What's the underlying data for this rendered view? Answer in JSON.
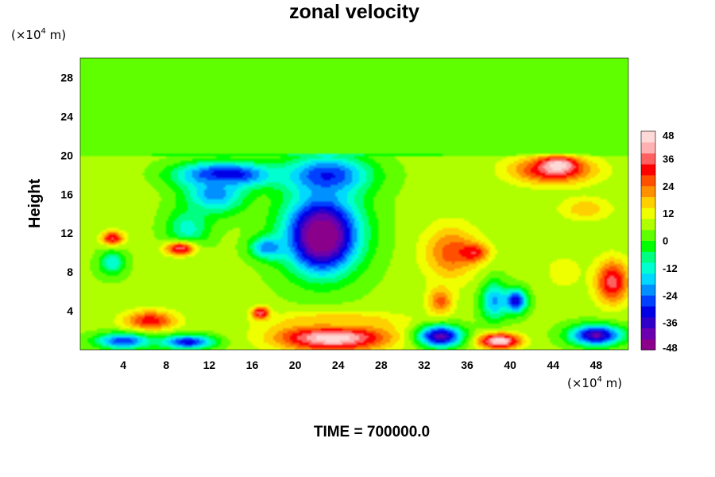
{
  "chart_data": {
    "type": "heatmap",
    "title": "zonal velocity",
    "ylabel": "Height",
    "xlabel": "",
    "y_unit": {
      "prefix": "(×10",
      "exponent": "4",
      "suffix": " m)"
    },
    "x_unit": {
      "prefix": "(×10",
      "exponent": "4",
      "suffix": " m)"
    },
    "xlim": [
      0,
      51
    ],
    "ylim": [
      0,
      30
    ],
    "x_ticks": [
      "4",
      "8",
      "12",
      "16",
      "20",
      "24",
      "28",
      "32",
      "36",
      "40",
      "44",
      "48"
    ],
    "y_ticks": [
      "4",
      "8",
      "12",
      "16",
      "20",
      "24",
      "28"
    ],
    "colorbar": {
      "range": [
        -48,
        48
      ],
      "ticks": [
        "48",
        "36",
        "24",
        "12",
        "0",
        "-12",
        "-24",
        "-36",
        "-48"
      ],
      "colors": [
        "#8a008a",
        "#6a00b0",
        "#3000c8",
        "#0000e6",
        "#0040ff",
        "#0090ff",
        "#00d8ff",
        "#00ffd0",
        "#00ff80",
        "#00ff00",
        "#60ff00",
        "#b0ff00",
        "#f0ff00",
        "#ffd000",
        "#ff9000",
        "#ff5000",
        "#ff0000",
        "#ff6060",
        "#ffb0b0",
        "#ffd8d8"
      ]
    },
    "field": {
      "background": 0,
      "features": [
        {
          "kind": "layer",
          "y": [
            0,
            20
          ],
          "value": 6
        },
        {
          "kind": "blob",
          "x": 4,
          "y": 17,
          "rx": 3,
          "ry": 2.5,
          "value": 8
        },
        {
          "kind": "blob",
          "x": 2.5,
          "y": 8.5,
          "rx": 2,
          "ry": 2,
          "value": 4
        },
        {
          "kind": "blob",
          "x": 13.5,
          "y": 18,
          "rx": 5.5,
          "ry": 1.6,
          "value": -36
        },
        {
          "kind": "blob",
          "x": 12.5,
          "y": 16,
          "rx": 3.5,
          "ry": 2.5,
          "value": -22
        },
        {
          "kind": "blob",
          "x": 23,
          "y": 18,
          "rx": 5,
          "ry": 2.5,
          "value": -28
        },
        {
          "kind": "blob",
          "x": 22.5,
          "y": 12,
          "rx": 4.6,
          "ry": 5.2,
          "value": -42
        },
        {
          "kind": "blob",
          "x": 22.5,
          "y": 11.5,
          "rx": 2.6,
          "ry": 3.2,
          "value": -48
        },
        {
          "kind": "blob",
          "x": 17.5,
          "y": 10.5,
          "rx": 2,
          "ry": 1.4,
          "value": -24
        },
        {
          "kind": "blob",
          "x": 10,
          "y": 12.5,
          "rx": 2.5,
          "ry": 2.4,
          "value": -12
        },
        {
          "kind": "blob",
          "x": 3,
          "y": 9,
          "rx": 1.4,
          "ry": 1.5,
          "value": -14
        },
        {
          "kind": "blob",
          "x": 3,
          "y": 11.5,
          "rx": 1.3,
          "ry": 0.9,
          "value": 34
        },
        {
          "kind": "blob",
          "x": 9.3,
          "y": 10.4,
          "rx": 1.8,
          "ry": 0.9,
          "value": 36
        },
        {
          "kind": "blob",
          "x": 6.5,
          "y": 3,
          "rx": 3,
          "ry": 1.3,
          "value": 32
        },
        {
          "kind": "blob",
          "x": 23.5,
          "y": 1.3,
          "rx": 6.5,
          "ry": 1.8,
          "value": 48
        },
        {
          "kind": "blob",
          "x": 24,
          "y": 3,
          "rx": 8,
          "ry": 1.2,
          "value": 18
        },
        {
          "kind": "blob",
          "x": 16.8,
          "y": 3.8,
          "rx": 1,
          "ry": 0.8,
          "value": 38
        },
        {
          "kind": "blob",
          "x": 34.5,
          "y": 10,
          "rx": 3.2,
          "ry": 3.5,
          "value": 26
        },
        {
          "kind": "blob",
          "x": 33.5,
          "y": 5,
          "rx": 1.5,
          "ry": 1.8,
          "value": 26
        },
        {
          "kind": "blob",
          "x": 36.5,
          "y": 10,
          "rx": 1.8,
          "ry": 1.2,
          "value": 34
        },
        {
          "kind": "blob",
          "x": 38.5,
          "y": 5,
          "rx": 1.5,
          "ry": 2.5,
          "value": -20
        },
        {
          "kind": "blob",
          "x": 40.5,
          "y": 5,
          "rx": 1.3,
          "ry": 1.5,
          "value": -34
        },
        {
          "kind": "blob",
          "x": 44,
          "y": 18.5,
          "rx": 4.8,
          "ry": 1.8,
          "value": 36
        },
        {
          "kind": "blob",
          "x": 44.5,
          "y": 19,
          "rx": 1.8,
          "ry": 0.9,
          "value": 48
        },
        {
          "kind": "blob",
          "x": 49.5,
          "y": 7,
          "rx": 2,
          "ry": 2.8,
          "value": 36
        },
        {
          "kind": "blob",
          "x": 47,
          "y": 14.5,
          "rx": 3,
          "ry": 1.5,
          "value": 18
        },
        {
          "kind": "blob",
          "x": 33.5,
          "y": 1.4,
          "rx": 2.6,
          "ry": 1.4,
          "value": -40
        },
        {
          "kind": "blob",
          "x": 39,
          "y": 0.9,
          "rx": 2.4,
          "ry": 1,
          "value": 48
        },
        {
          "kind": "blob",
          "x": 48,
          "y": 1.5,
          "rx": 3,
          "ry": 1.3,
          "value": -40
        },
        {
          "kind": "blob",
          "x": 4,
          "y": 0.9,
          "rx": 3.2,
          "ry": 1,
          "value": -28
        },
        {
          "kind": "blob",
          "x": 10,
          "y": 0.8,
          "rx": 3,
          "ry": 0.9,
          "value": -32
        },
        {
          "kind": "blob",
          "x": 45,
          "y": 8,
          "rx": 2.5,
          "ry": 2.5,
          "value": 12
        }
      ]
    },
    "footer": "TIME = 700000.0"
  }
}
